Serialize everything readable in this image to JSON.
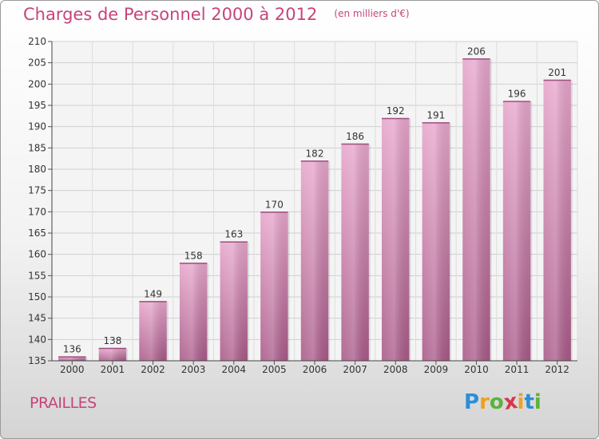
{
  "chart_data": {
    "type": "bar",
    "title": "Charges de Personnel 2000 à 2012",
    "subtitle": "(en milliers d'€)",
    "categories": [
      "2000",
      "2001",
      "2002",
      "2003",
      "2004",
      "2005",
      "2006",
      "2007",
      "2008",
      "2009",
      "2010",
      "2011",
      "2012"
    ],
    "values": [
      136,
      138,
      149,
      158,
      163,
      170,
      182,
      186,
      192,
      191,
      206,
      196,
      201
    ],
    "ylim": [
      135,
      210
    ],
    "yticks": [
      135,
      140,
      145,
      150,
      155,
      160,
      165,
      170,
      175,
      180,
      185,
      190,
      195,
      200,
      205,
      210
    ],
    "grid": true,
    "bar_color": "#d988b6",
    "bar_color_dark": "#a95a88"
  },
  "footer": {
    "place": "PRAILLES",
    "logo_letters": [
      "P",
      "r",
      "o",
      "x",
      "i",
      "t",
      "i"
    ],
    "logo_colors": [
      "#2a8fd6",
      "#f0a020",
      "#59b33a",
      "#d6374a",
      "#f0a020",
      "#2a8fd6",
      "#59b33a"
    ]
  }
}
